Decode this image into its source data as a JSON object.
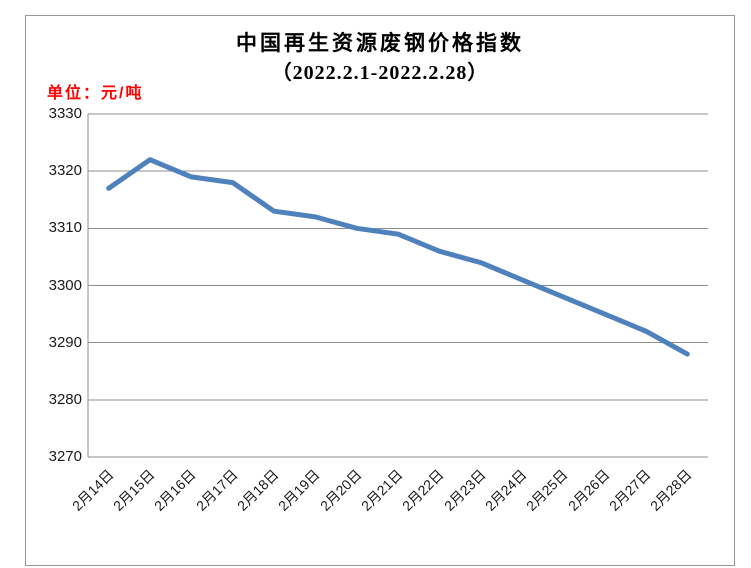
{
  "chart": {
    "title": "中国再生资源废钢价格指数",
    "subtitle": "（2022.2.1-2022.2.28）",
    "unit_label": "单位：元/吨",
    "colors": {
      "line": "#4F81BD",
      "unit_label_text": "#FF0000",
      "grid": "#8C8C8C",
      "axis": "#8C8C8C",
      "frame_border": "#969696",
      "text": "#000000",
      "background": "#FFFFFF"
    }
  },
  "chart_data": {
    "type": "line",
    "title": "中国再生资源废钢价格指数",
    "subtitle": "（2022.2.1-2022.2.28）",
    "unit": "元/吨",
    "categories": [
      "2月14日",
      "2月15日",
      "2月16日",
      "2月17日",
      "2月18日",
      "2月19日",
      "2月20日",
      "2月21日",
      "2月22日",
      "2月23日",
      "2月24日",
      "2月25日",
      "2月26日",
      "2月27日",
      "2月28日"
    ],
    "values": [
      3317,
      3322,
      3319,
      3318,
      3313,
      3312,
      3310,
      3309,
      3306,
      3304,
      3301,
      3298,
      3295,
      3292,
      3288
    ],
    "xlabel": "",
    "ylabel": "元/吨",
    "ylim": [
      3270,
      3330
    ],
    "yticks": [
      3330,
      3320,
      3310,
      3300,
      3290,
      3280,
      3270
    ],
    "grid": true,
    "legend": false,
    "line_color": "#4F81BD"
  }
}
